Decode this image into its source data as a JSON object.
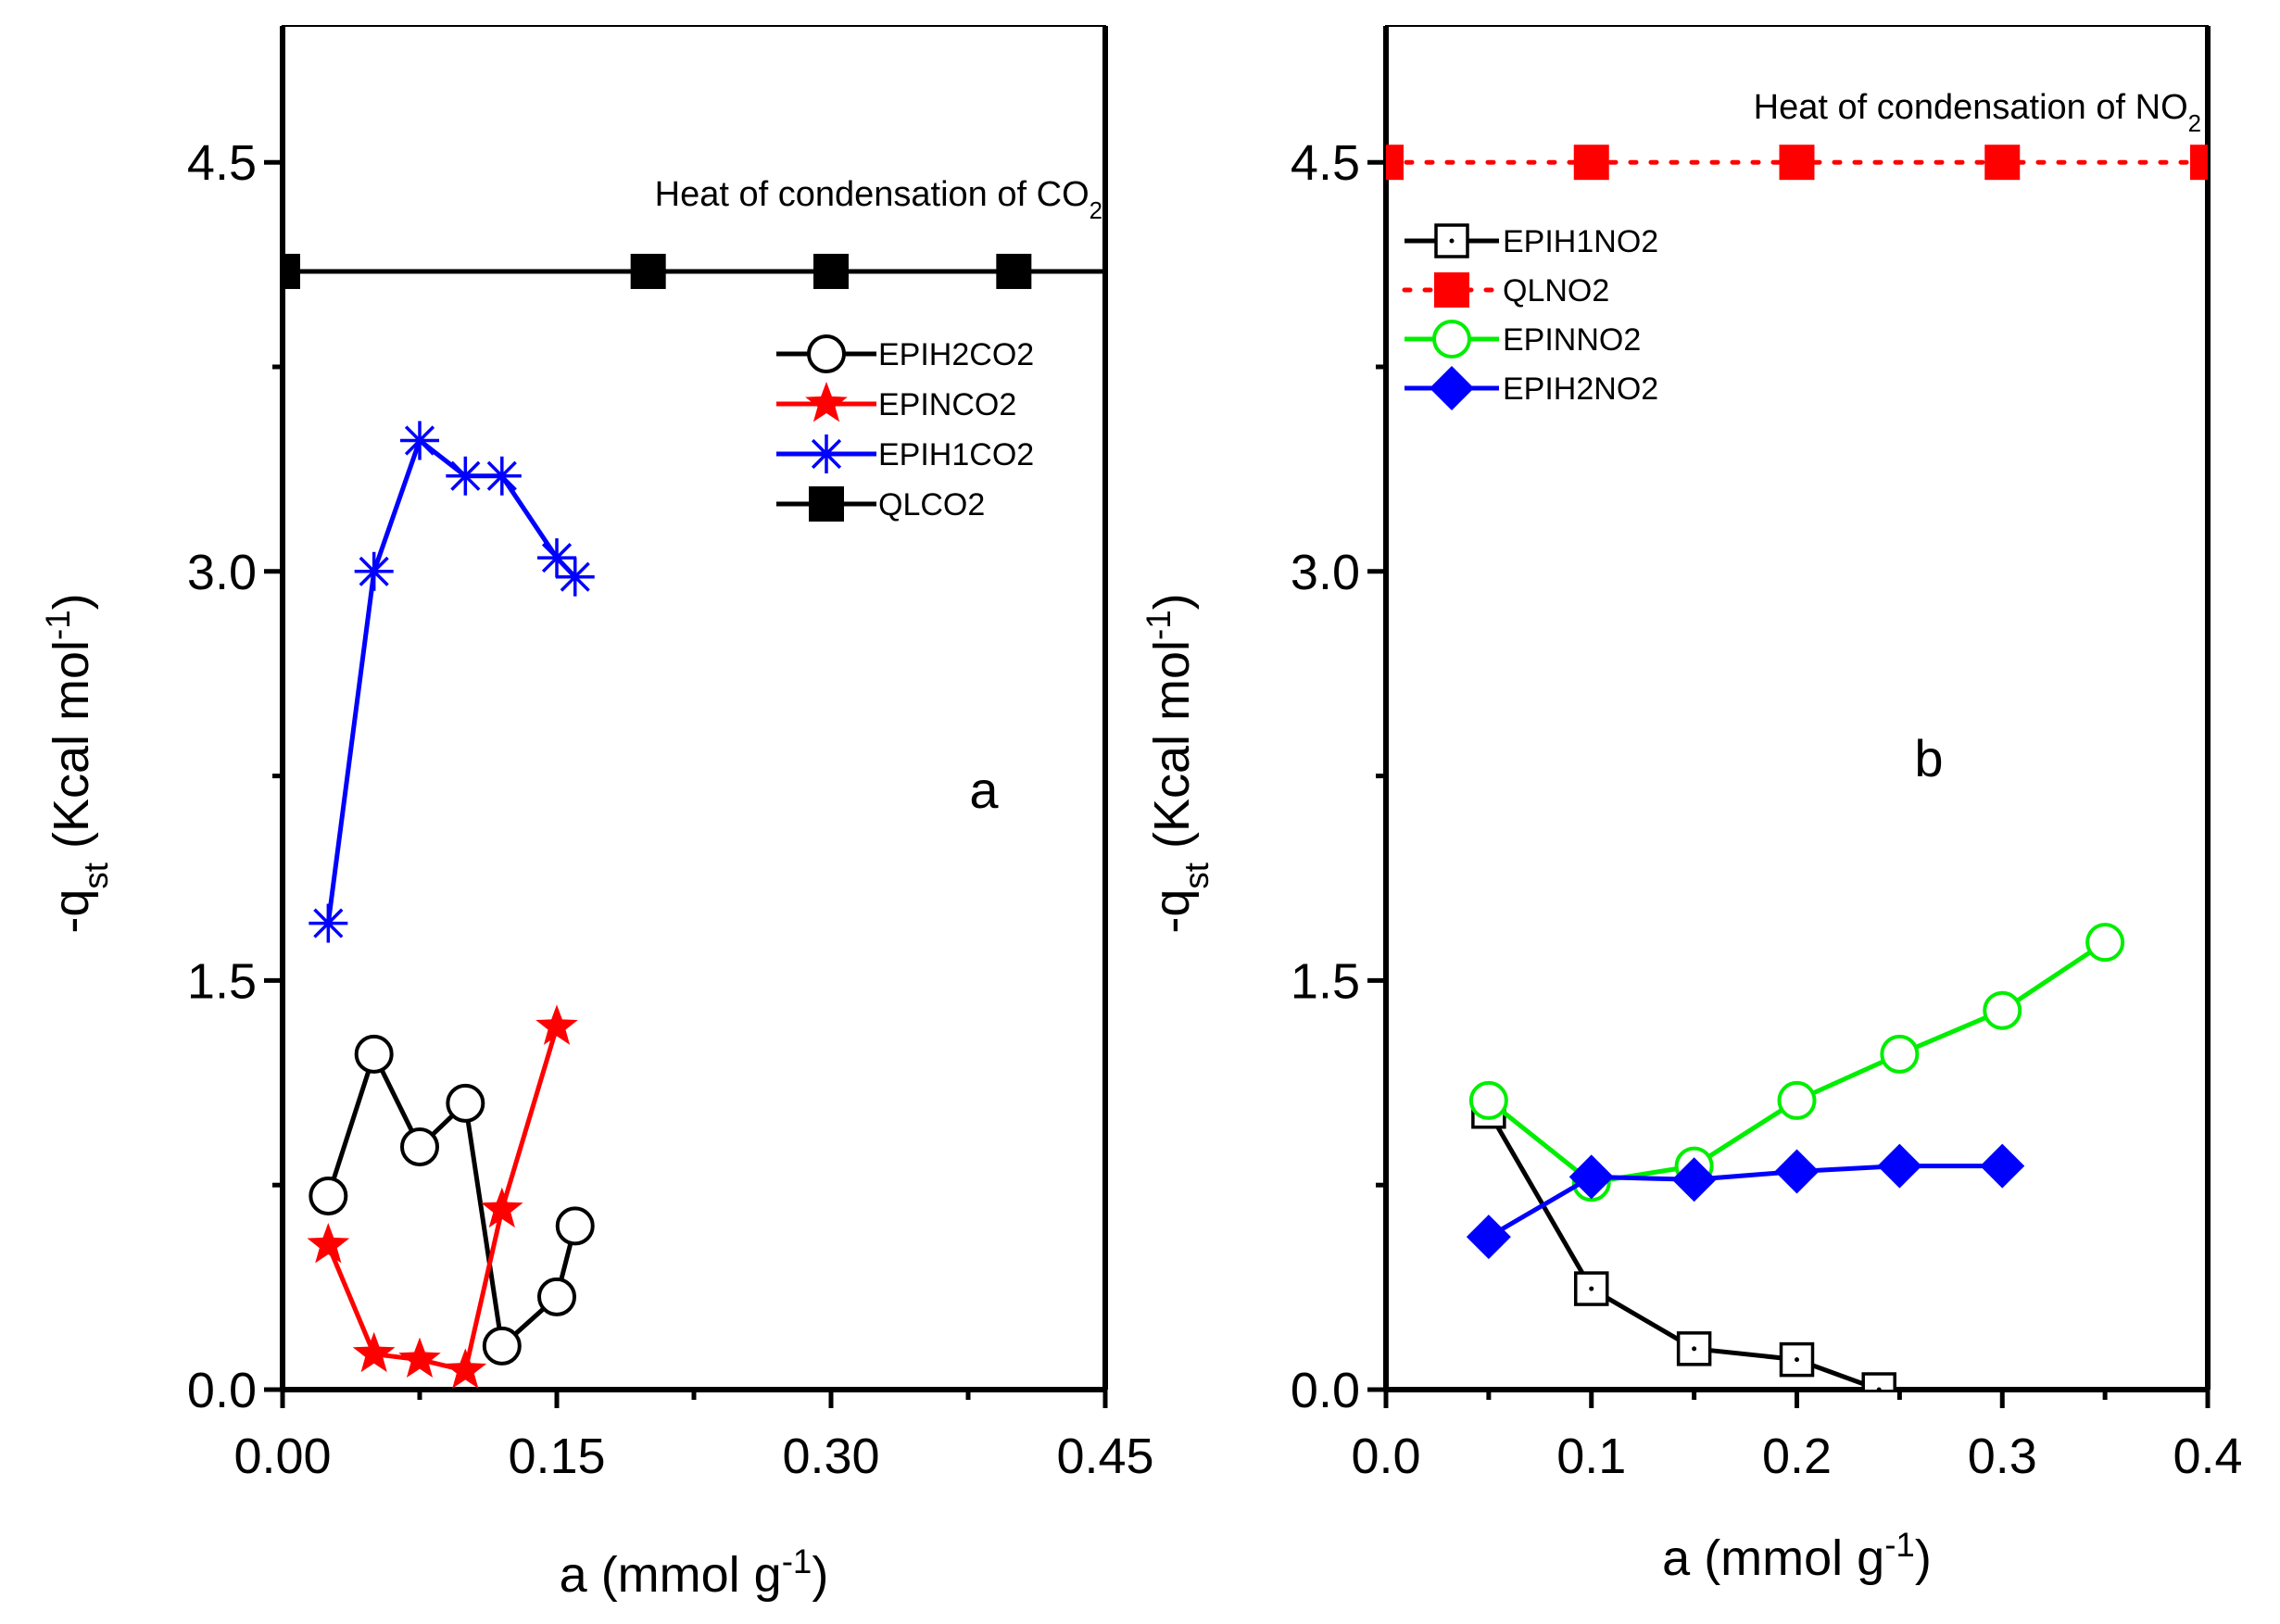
{
  "chart_data": [
    {
      "type": "line",
      "panel_label": "a",
      "xlabel": {
        "main": "a (mmol g",
        "sup": "-1",
        "end": ")"
      },
      "ylabel": {
        "pre": "-q",
        "sub": "st",
        "mid": " (Kcal mol",
        "sup": "-1",
        "end": ")"
      },
      "xlim": [
        0,
        0.45
      ],
      "ylim": [
        0,
        5
      ],
      "x_ticks": [
        "0.00",
        "0.15",
        "0.30",
        "0.45"
      ],
      "x_tick_values": [
        0,
        0.15,
        0.3,
        0.45
      ],
      "y_ticks": [
        "0.0",
        "1.5",
        "3.0",
        "4.5"
      ],
      "y_tick_values": [
        0,
        1.5,
        3.0,
        4.5
      ],
      "annotation": {
        "text": "Heat of condensation of CO",
        "sub": "2"
      },
      "series": [
        {
          "name": "EPIH2CO2",
          "marker": "circle-open",
          "color": "#000000",
          "dash": "solid",
          "x": [
            0.025,
            0.05,
            0.075,
            0.1,
            0.12,
            0.15,
            0.16
          ],
          "y": [
            0.71,
            1.23,
            0.89,
            1.05,
            0.16,
            0.34,
            0.6
          ]
        },
        {
          "name": "EPINCO2",
          "marker": "star",
          "color": "#ff0000",
          "dash": "solid",
          "x": [
            0.025,
            0.05,
            0.075,
            0.1,
            0.12,
            0.15
          ],
          "y": [
            0.53,
            0.13,
            0.11,
            0.07,
            0.66,
            1.33
          ]
        },
        {
          "name": "EPIH1CO2",
          "marker": "asterisk",
          "color": "#0000ff",
          "dash": "solid",
          "x": [
            0.025,
            0.05,
            0.075,
            0.1,
            0.12,
            0.15,
            0.16
          ],
          "y": [
            1.71,
            3.0,
            3.48,
            3.35,
            3.35,
            3.05,
            2.98
          ]
        },
        {
          "name": "QLCO2",
          "marker": "square-filled",
          "color": "#000000",
          "dash": "solid",
          "x": [
            0,
            0.2,
            0.3,
            0.4,
            0.45
          ],
          "y": [
            4.1,
            4.1,
            4.1,
            4.1,
            4.1
          ],
          "marker_x": [
            0,
            0.2,
            0.3,
            0.4
          ]
        }
      ]
    },
    {
      "type": "line",
      "panel_label": "b",
      "xlabel": {
        "main": "a (mmol g",
        "sup": "-1",
        "end": ")"
      },
      "ylabel": {
        "pre": "-q",
        "sub": "st",
        "mid": " (Kcal mol",
        "sup": "-1",
        "end": ")"
      },
      "xlim": [
        0,
        0.4
      ],
      "ylim": [
        0,
        5
      ],
      "x_ticks": [
        "0.0",
        "0.1",
        "0.2",
        "0.3",
        "0.4"
      ],
      "x_tick_values": [
        0,
        0.1,
        0.2,
        0.3,
        0.4
      ],
      "y_ticks": [
        "0.0",
        "1.5",
        "3.0",
        "4.5"
      ],
      "y_tick_values": [
        0,
        1.5,
        3.0,
        4.5
      ],
      "annotation": {
        "text": "Heat of condensation of NO",
        "sub": "2"
      },
      "series": [
        {
          "name": "EPIH1NO2",
          "marker": "square-open-dot",
          "color": "#000000",
          "dash": "solid",
          "x": [
            0.05,
            0.1,
            0.15,
            0.2,
            0.24
          ],
          "y": [
            1.02,
            0.37,
            0.15,
            0.11,
            0.0
          ]
        },
        {
          "name": "QLNO2",
          "marker": "square-filled",
          "color": "#ff0000",
          "dash": "dotted",
          "x": [
            0,
            0.1,
            0.2,
            0.3,
            0.4
          ],
          "y": [
            4.5,
            4.5,
            4.5,
            4.5,
            4.5
          ]
        },
        {
          "name": "EPINNO2",
          "marker": "circle-open",
          "color": "#00ee00",
          "dash": "solid",
          "x": [
            0.05,
            0.1,
            0.15,
            0.2,
            0.25,
            0.3,
            0.35
          ],
          "y": [
            1.06,
            0.76,
            0.82,
            1.06,
            1.23,
            1.39,
            1.64
          ]
        },
        {
          "name": "EPIH2NO2",
          "marker": "diamond-filled",
          "color": "#0000ff",
          "dash": "solid",
          "x": [
            0.05,
            0.1,
            0.15,
            0.2,
            0.25,
            0.3
          ],
          "y": [
            0.56,
            0.78,
            0.77,
            0.8,
            0.82,
            0.82
          ]
        }
      ]
    }
  ]
}
